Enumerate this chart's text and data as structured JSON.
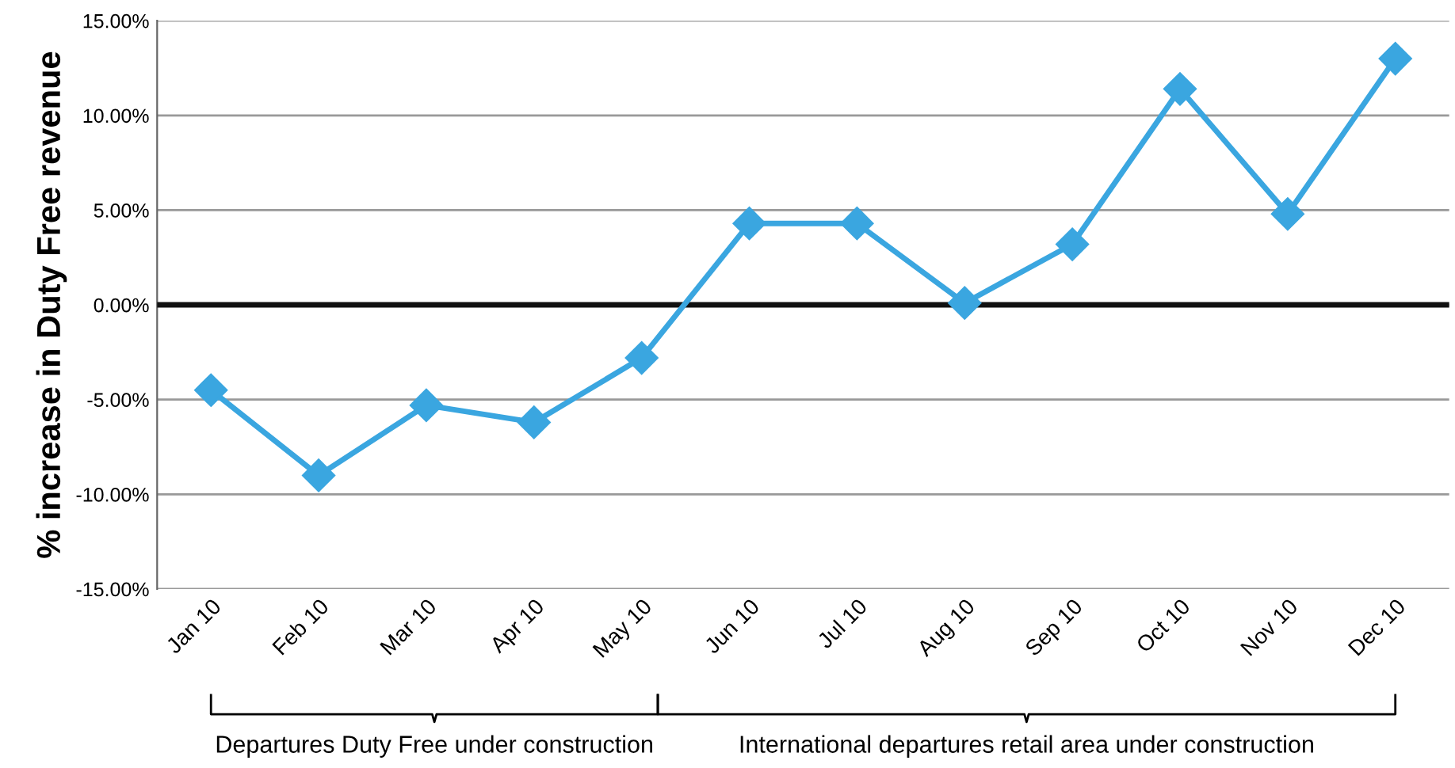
{
  "chart_data": {
    "type": "line",
    "ylabel": "% increase in Duty Free revenue",
    "categories": [
      "Jan 10",
      "Feb 10",
      "Mar 10",
      "Apr 10",
      "May 10",
      "Jun 10",
      "Jul 10",
      "Aug 10",
      "Sep 10",
      "Oct 10",
      "Nov 10",
      "Dec 10"
    ],
    "series": [
      {
        "color": "#3aa6e0",
        "values": [
          -4.5,
          -9.0,
          -5.3,
          -6.2,
          -2.8,
          4.3,
          4.3,
          0.1,
          3.2,
          11.4,
          4.8,
          13.0
        ]
      }
    ],
    "ylim": [
      -15,
      15
    ],
    "yticks": [
      {
        "value": -15,
        "label": "-15.00%"
      },
      {
        "value": -10,
        "label": "-10.00%"
      },
      {
        "value": -5,
        "label": "-5.00%"
      },
      {
        "value": 0,
        "label": "0.00%"
      },
      {
        "value": 5,
        "label": "5.00%"
      },
      {
        "value": 10,
        "label": "10.00%"
      },
      {
        "value": 15,
        "label": "15.00%"
      }
    ],
    "ref_lines": [
      {
        "axis": "y",
        "value": 0,
        "color": "#111111"
      }
    ],
    "grid": "y",
    "marker": "diamond",
    "line_style": "solid",
    "legend": false,
    "annotations": [
      "Departures Duty Free under construction",
      "International departures retail area under construction"
    ]
  }
}
